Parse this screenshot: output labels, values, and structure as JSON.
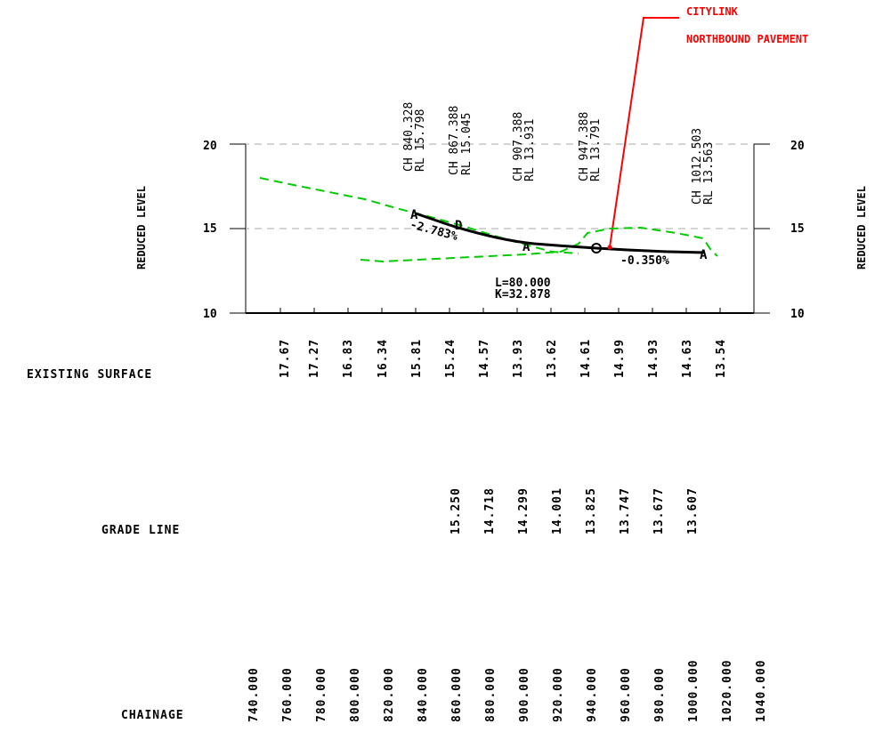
{
  "callout": {
    "line1": "CITYLINK",
    "line2": "NORTHBOUND PAVEMENT",
    "color": "#ff0000"
  },
  "axis": {
    "left_label": "REDUCED LEVEL",
    "right_label": "REDUCED LEVEL",
    "ticks": [
      "20",
      "15",
      "10"
    ]
  },
  "ip_labels": [
    {
      "ch": "CH 840.328",
      "rl": "RL 15.798"
    },
    {
      "ch": "CH 867.388",
      "rl": "RL 15.045"
    },
    {
      "ch": "CH 907.388",
      "rl": "RL 13.931"
    },
    {
      "ch": "CH 947.388",
      "rl": "RL 13.791"
    },
    {
      "ch": "CH 1012.503",
      "rl": "RL 13.563"
    }
  ],
  "grades": {
    "left": "-2.783%",
    "right": "-0.350%"
  },
  "curve": {
    "length": "L=80.000",
    "k": "K=32.878"
  },
  "rows": {
    "existing_surface": {
      "label": "EXISTING SURFACE",
      "values": [
        "17.67",
        "17.27",
        "16.83",
        "16.34",
        "15.81",
        "15.24",
        "14.57",
        "13.93",
        "13.62",
        "14.61",
        "14.99",
        "14.93",
        "14.63",
        "13.54"
      ]
    },
    "grade_line": {
      "label": "GRADE LINE",
      "values": [
        "15.250",
        "14.718",
        "14.299",
        "14.001",
        "13.825",
        "13.747",
        "13.677",
        "13.607"
      ]
    },
    "chainage": {
      "label": "CHAINAGE",
      "values": [
        "740.000",
        "760.000",
        "780.000",
        "800.000",
        "820.000",
        "840.000",
        "860.000",
        "880.000",
        "900.000",
        "920.000",
        "940.000",
        "960.000",
        "980.000",
        "1000.000",
        "1020.000",
        "1040.000"
      ]
    }
  },
  "colors": {
    "existing_surface": "#00cc00",
    "grade_line": "#000000",
    "grid": "#aaaaaa"
  }
}
